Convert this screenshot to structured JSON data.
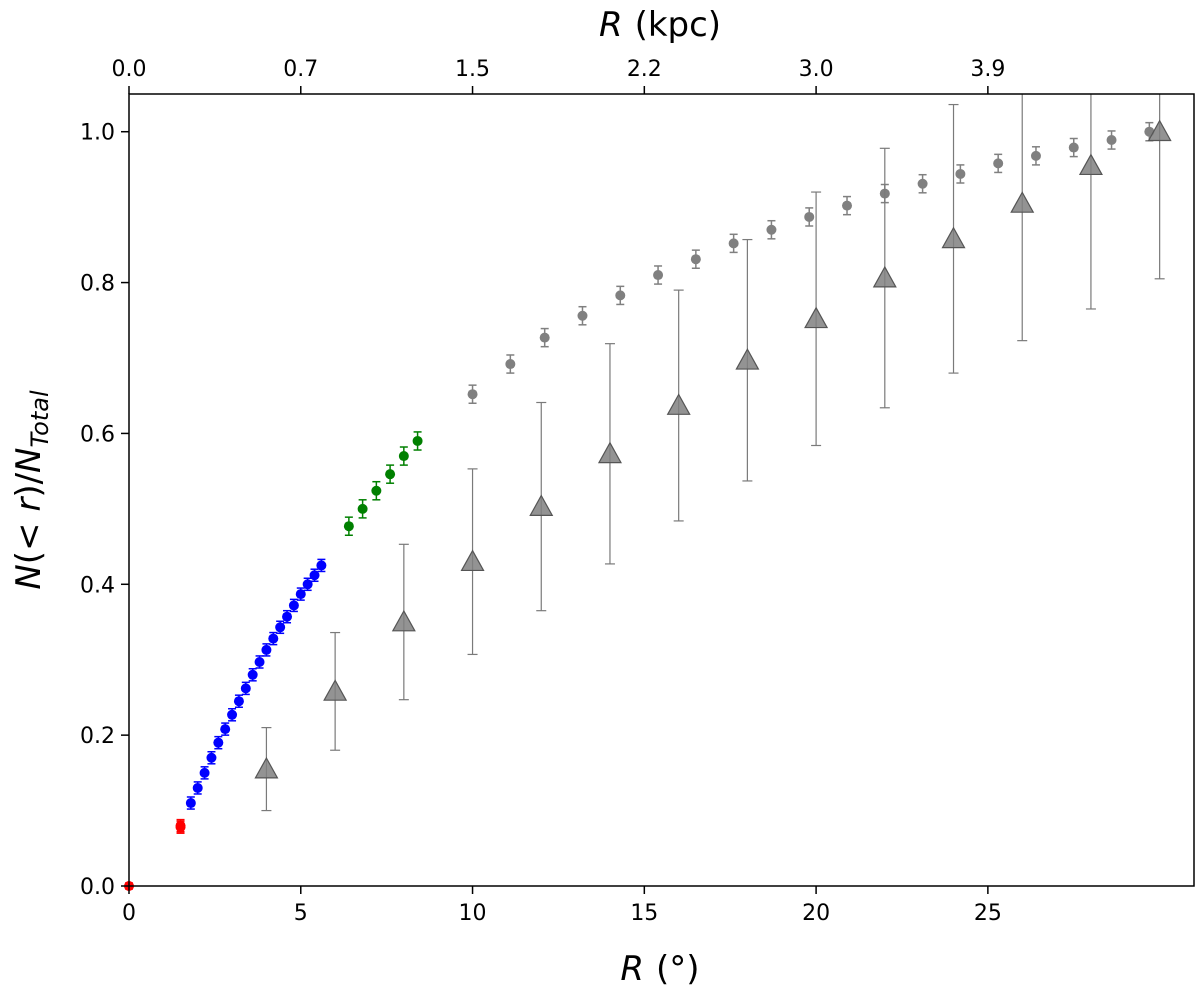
{
  "chart_data": {
    "type": "scatter",
    "title": "",
    "xlabel": {
      "main": "R",
      "unit": "(°)"
    },
    "ylabel": {
      "N": "N",
      "lt": "(< ",
      "r": "r",
      "close": ")/",
      "NT": "N",
      "sub": "Total"
    },
    "top_xlabel": {
      "main": "R",
      "unit": "(kpc)"
    },
    "xlim": [
      0,
      31
    ],
    "ylim": [
      0,
      1.05
    ],
    "x_ticks": [
      "0",
      "5",
      "10",
      "15",
      "20",
      "25"
    ],
    "y_ticks": [
      "0.0",
      "0.2",
      "0.4",
      "0.6",
      "0.8",
      "1.0"
    ],
    "top_ticks": [
      {
        "label": "0.0",
        "x": 0
      },
      {
        "label": "0.7",
        "x": 5
      },
      {
        "label": "1.5",
        "x": 10
      },
      {
        "label": "2.2",
        "x": 15
      },
      {
        "label": "3.0",
        "x": 20
      },
      {
        "label": "3.9",
        "x": 25
      }
    ],
    "grid": false,
    "series": [
      {
        "marker": "circle",
        "color": "#ff0000",
        "points": [
          [
            0.0,
            0.0,
            0.004
          ],
          [
            1.5,
            0.078,
            0.008
          ],
          [
            1.5,
            0.08,
            0.008
          ]
        ]
      },
      {
        "marker": "circle",
        "color": "#0000ff",
        "points": [
          [
            1.8,
            0.11,
            0.008
          ],
          [
            2.0,
            0.13,
            0.008
          ],
          [
            2.2,
            0.15,
            0.008
          ],
          [
            2.4,
            0.17,
            0.008
          ],
          [
            2.6,
            0.19,
            0.008
          ],
          [
            2.8,
            0.208,
            0.008
          ],
          [
            3.0,
            0.227,
            0.008
          ],
          [
            3.2,
            0.245,
            0.008
          ],
          [
            3.4,
            0.262,
            0.008
          ],
          [
            3.6,
            0.28,
            0.008
          ],
          [
            3.8,
            0.297,
            0.008
          ],
          [
            4.0,
            0.313,
            0.008
          ],
          [
            4.2,
            0.328,
            0.008
          ],
          [
            4.4,
            0.343,
            0.008
          ],
          [
            4.6,
            0.357,
            0.008
          ],
          [
            4.8,
            0.372,
            0.008
          ],
          [
            5.0,
            0.387,
            0.008
          ],
          [
            5.2,
            0.4,
            0.008
          ],
          [
            5.4,
            0.412,
            0.008
          ],
          [
            5.6,
            0.425,
            0.008
          ]
        ]
      },
      {
        "marker": "circle",
        "color": "#008000",
        "points": [
          [
            6.4,
            0.477,
            0.012
          ],
          [
            6.8,
            0.5,
            0.012
          ],
          [
            7.2,
            0.524,
            0.012
          ],
          [
            7.6,
            0.546,
            0.012
          ],
          [
            8.0,
            0.57,
            0.012
          ],
          [
            8.4,
            0.59,
            0.012
          ]
        ]
      },
      {
        "marker": "circle",
        "color": "#808080",
        "points": [
          [
            10.0,
            0.652,
            0.012
          ],
          [
            11.1,
            0.692,
            0.012
          ],
          [
            12.1,
            0.727,
            0.012
          ],
          [
            13.2,
            0.756,
            0.012
          ],
          [
            14.3,
            0.783,
            0.012
          ],
          [
            15.4,
            0.81,
            0.012
          ],
          [
            16.5,
            0.831,
            0.012
          ],
          [
            17.6,
            0.852,
            0.012
          ],
          [
            18.7,
            0.87,
            0.012
          ],
          [
            19.8,
            0.887,
            0.012
          ],
          [
            20.9,
            0.902,
            0.012
          ],
          [
            22.0,
            0.918,
            0.012
          ],
          [
            23.1,
            0.931,
            0.012
          ],
          [
            24.2,
            0.944,
            0.012
          ],
          [
            25.3,
            0.958,
            0.012
          ],
          [
            26.4,
            0.968,
            0.012
          ],
          [
            27.5,
            0.979,
            0.012
          ],
          [
            28.6,
            0.989,
            0.012
          ],
          [
            29.7,
            1.0,
            0.012
          ]
        ]
      },
      {
        "marker": "triangle",
        "color": "#808080",
        "points": [
          [
            4,
            0.155,
            0.055
          ],
          [
            6,
            0.258,
            0.078
          ],
          [
            8,
            0.35,
            0.103
          ],
          [
            10,
            0.43,
            0.123
          ],
          [
            12,
            0.503,
            0.138
          ],
          [
            14,
            0.573,
            0.146
          ],
          [
            16,
            0.637,
            0.153
          ],
          [
            18,
            0.697,
            0.16
          ],
          [
            20,
            0.752,
            0.168
          ],
          [
            22,
            0.806,
            0.172
          ],
          [
            24,
            0.858,
            0.178
          ],
          [
            26,
            0.905,
            0.182
          ],
          [
            28,
            0.955,
            0.19
          ],
          [
            30,
            1.0,
            0.195
          ]
        ]
      }
    ]
  }
}
